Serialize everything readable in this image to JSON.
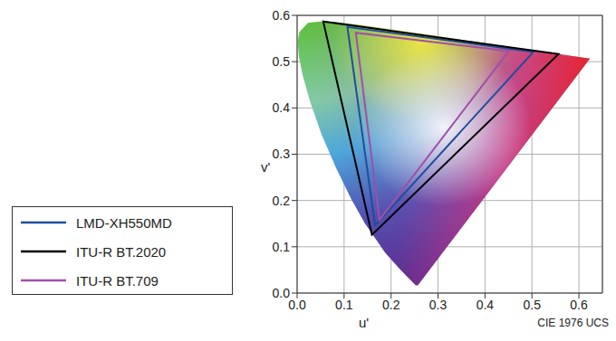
{
  "chart_data": {
    "type": "scatter",
    "x_label": "u'",
    "y_label": "v'",
    "annotation": "CIE 1976 UCS",
    "xlim": [
      0,
      0.65
    ],
    "ylim": [
      0,
      0.6
    ],
    "xticks": [
      {
        "value": 0,
        "label": "0.0"
      },
      0.1,
      0.2,
      0.3,
      0.4,
      0.5,
      0.6
    ],
    "yticks": [
      {
        "value": 0,
        "label": "0.0"
      },
      0.1,
      0.2,
      0.3,
      0.4,
      0.5,
      0.6
    ],
    "grid": true,
    "legend": "left",
    "line_style": "solid",
    "marker": "none",
    "spectral_locus": {
      "x": [
        0.2568,
        0.2522,
        0.2347,
        0.2161,
        0.1877,
        0.1441,
        0.1147,
        0.0828,
        0.0521,
        0.0282,
        0.0119,
        0.0035,
        0.0014,
        0.0046,
        0.0231,
        0.0501,
        0.0792,
        0.1127,
        0.1531,
        0.2026,
        0.2623,
        0.3315,
        0.4035,
        0.5203,
        0.583,
        0.6234
      ],
      "y": [
        0.0166,
        0.0169,
        0.035,
        0.0549,
        0.0871,
        0.151,
        0.2044,
        0.2708,
        0.3427,
        0.4117,
        0.4698,
        0.5131,
        0.5431,
        0.5638,
        0.5837,
        0.5868,
        0.5856,
        0.5821,
        0.5766,
        0.5694,
        0.5604,
        0.5501,
        0.5393,
        0.5219,
        0.5125,
        0.5065
      ]
    },
    "series": [
      {
        "name": "LMD-XH550MD",
        "color": "#1f4e9c",
        "x": [
          0.503,
          0.107,
          0.166
        ],
        "y": [
          0.521,
          0.575,
          0.146
        ]
      },
      {
        "name": "ITU-R BT.2020",
        "color": "#000000",
        "x": [
          0.5566,
          0.0556,
          0.1593
        ],
        "y": [
          0.5165,
          0.5868,
          0.1258
        ]
      },
      {
        "name": "ITU-R BT.709",
        "color": "#a04fa8",
        "x": [
          0.4507,
          0.125,
          0.1754
        ],
        "y": [
          0.5229,
          0.5625,
          0.1579
        ]
      }
    ]
  }
}
